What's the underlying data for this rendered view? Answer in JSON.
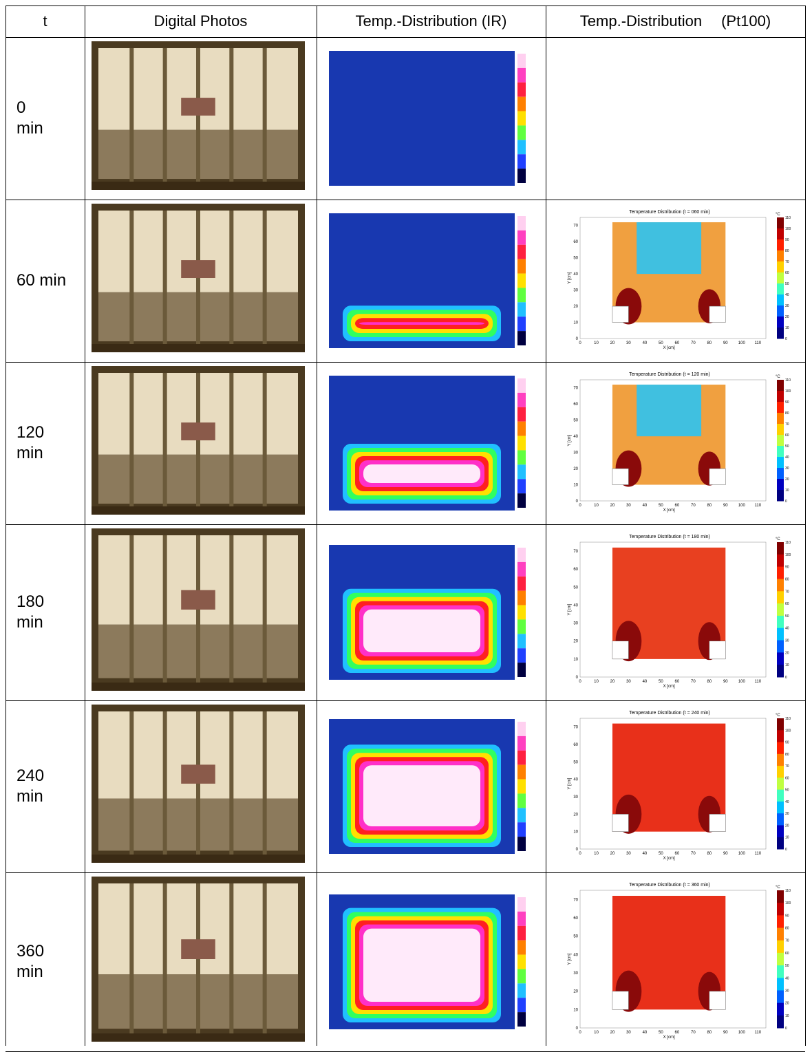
{
  "headers": {
    "t": "t",
    "photos": "Digital Photos",
    "ir": "Temp.-Distribution (IR)",
    "pt100": "Temp.-Distribution",
    "pt100_suffix": "(Pt100)"
  },
  "rows": [
    {
      "t_line1": "0",
      "t_line2": "min",
      "contour_title": "",
      "ir_level": 0.0
    },
    {
      "t_line1": "60 min",
      "t_line2": "",
      "contour_title": "Temperature Distribution (t = 060 min)",
      "ir_level": 0.35
    },
    {
      "t_line1": "120",
      "t_line2": "min",
      "contour_title": "Temperature Distribution (t = 120 min)",
      "ir_level": 0.55
    },
    {
      "t_line1": "180",
      "t_line2": "min",
      "contour_title": "Temperature Distribution (t = 180 min)",
      "ir_level": 0.75
    },
    {
      "t_line1": "240",
      "t_line2": "min",
      "contour_title": "Temperature Distribution (t = 240 min)",
      "ir_level": 0.9
    },
    {
      "t_line1": "360",
      "t_line2": "min",
      "contour_title": "Temperature Distribution (t = 360 min)",
      "ir_level": 1.0
    }
  ],
  "contour_axes": {
    "xlabel": "X [cm]",
    "ylabel": "Y [cm]",
    "xticks": [
      "0",
      "10",
      "20",
      "30",
      "40",
      "50",
      "60",
      "70",
      "80",
      "90",
      "100",
      "110"
    ],
    "yticks": [
      "0",
      "10",
      "20",
      "30",
      "40",
      "50",
      "60",
      "70"
    ],
    "unit": "°C",
    "colorbar_ticks": [
      "0",
      "10",
      "20",
      "30",
      "40",
      "50",
      "60",
      "70",
      "80",
      "90",
      "100",
      "110"
    ]
  },
  "colors": {
    "cold": "#1030a0",
    "hot": "#ff20c0",
    "white_hot": "#ffffff",
    "contour_red": "#e8301a",
    "contour_dark": "#8a0a0a"
  }
}
